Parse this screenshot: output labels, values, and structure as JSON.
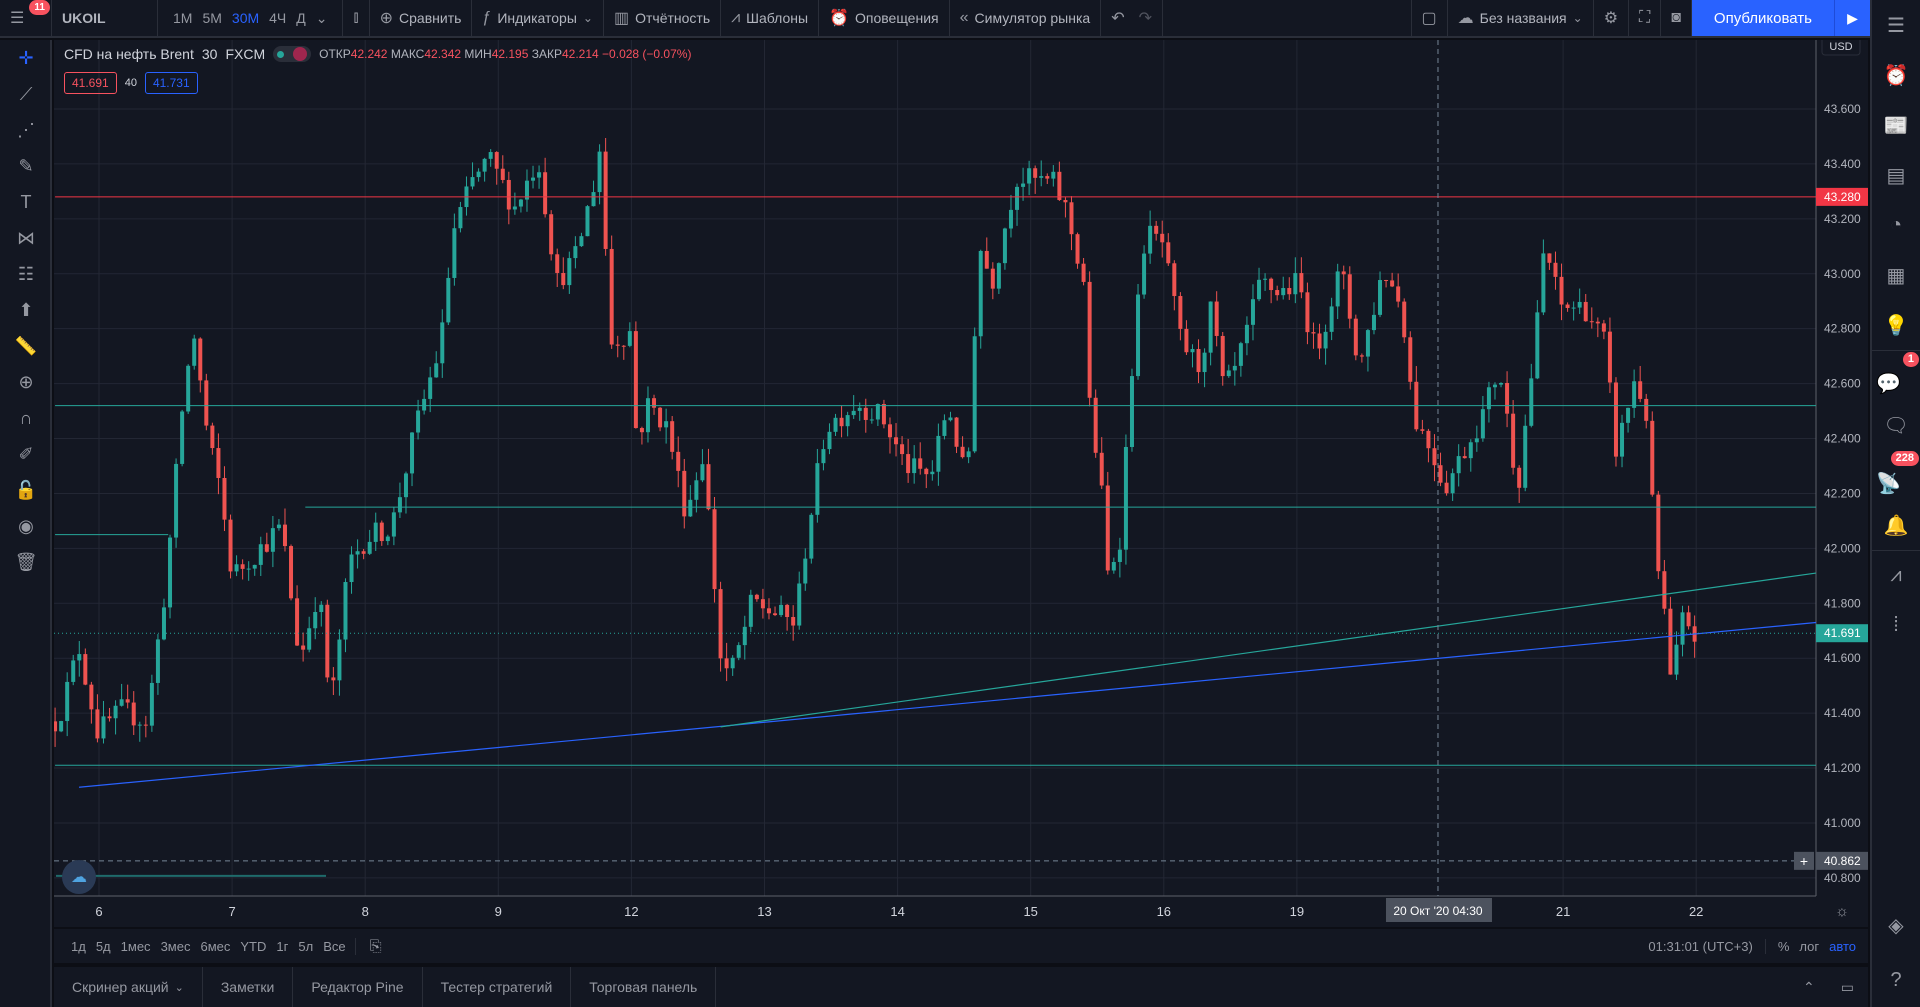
{
  "topbar": {
    "menu_badge": "11",
    "symbol": "UKOIL",
    "intervals": [
      "1М",
      "5М",
      "30М",
      "4Ч",
      "Д"
    ],
    "active_interval": "30М",
    "compare": "Сравнить",
    "indicators": "Индикаторы",
    "reports": "Отчётность",
    "templates": "Шаблоны",
    "alerts": "Оповещения",
    "replay": "Симулятор рынка",
    "layout_name": "Без названия",
    "publish": "Опубликовать"
  },
  "legend": {
    "title": "CFD на нефть Brent",
    "interval": "30",
    "exchange": "FXCM",
    "open_label": "ОТКР",
    "open": "42.242",
    "high_label": "МАКС",
    "high": "42.342",
    "low_label": "МИН",
    "low": "42.195",
    "close_label": "ЗАКР",
    "close": "42.214",
    "change": "−0.028 (−0.07%)",
    "bid": "41.691",
    "spread": "40",
    "ask": "41.731"
  },
  "price_axis": {
    "currency": "USD",
    "ticks": [
      "43.600",
      "43.400",
      "43.200",
      "43.000",
      "42.800",
      "42.600",
      "42.400",
      "42.200",
      "42.000",
      "41.800",
      "41.600",
      "41.400",
      "41.200",
      "41.000",
      "40.800"
    ],
    "labels": {
      "resistance": "43.280",
      "last": "41.691",
      "crosshair": "40.862"
    }
  },
  "time_axis": {
    "ticks": [
      "6",
      "7",
      "8",
      "9",
      "12",
      "13",
      "14",
      "15",
      "16",
      "19",
      "21",
      "22"
    ],
    "crosshair": "20 Окт '20   04:30"
  },
  "range_bar": {
    "ranges": [
      "1д",
      "5д",
      "1мес",
      "3мес",
      "6мес",
      "YTD",
      "1г",
      "5л",
      "Все"
    ],
    "clock": "01:31:01 (UTC+3)",
    "percent": "%",
    "log": "лог",
    "auto": "авто"
  },
  "bottom_panel": {
    "tabs": [
      "Скринер акций",
      "Заметки",
      "Редактор Pine",
      "Тестер стратегий",
      "Торговая панель"
    ]
  },
  "right_sidebar": {
    "ideas_badge": "1",
    "streams_badge": "228"
  },
  "colors": {
    "up": "#26a69a",
    "down": "#ef5350",
    "accent": "#2962ff",
    "background": "#131722"
  },
  "chart_data": {
    "type": "candlestick",
    "title": "CFD на нефть Brent, 30, FXCM",
    "x_unit": "trading day index (0 = Oct 6)",
    "ylim": [
      40.75,
      43.78
    ],
    "xlim": [
      -0.33,
      12.9
    ],
    "path": [
      [
        -0.31,
        41.37
      ],
      [
        -0.15,
        41.64
      ],
      [
        -0.01,
        41.33
      ],
      [
        0.17,
        41.41
      ],
      [
        0.36,
        41.37
      ],
      [
        0.5,
        41.86
      ],
      [
        0.63,
        42.53
      ],
      [
        0.71,
        42.79
      ],
      [
        0.82,
        42.39
      ],
      [
        0.91,
        42.22
      ],
      [
        1.0,
        41.9
      ],
      [
        1.19,
        41.99
      ],
      [
        1.37,
        42.08
      ],
      [
        1.51,
        41.59
      ],
      [
        1.65,
        41.86
      ],
      [
        1.74,
        41.41
      ],
      [
        1.88,
        41.95
      ],
      [
        2.01,
        42.04
      ],
      [
        2.2,
        42.08
      ],
      [
        2.38,
        42.44
      ],
      [
        2.57,
        42.75
      ],
      [
        2.66,
        43.15
      ],
      [
        2.8,
        43.33
      ],
      [
        2.93,
        43.42
      ],
      [
        3.12,
        43.24
      ],
      [
        3.3,
        43.42
      ],
      [
        3.44,
        42.97
      ],
      [
        3.58,
        43.06
      ],
      [
        3.72,
        43.33
      ],
      [
        3.76,
        43.46
      ],
      [
        3.85,
        42.75
      ],
      [
        3.99,
        42.79
      ],
      [
        4.04,
        42.39
      ],
      [
        4.13,
        42.53
      ],
      [
        4.27,
        42.44
      ],
      [
        4.41,
        42.13
      ],
      [
        4.54,
        42.35
      ],
      [
        4.68,
        41.55
      ],
      [
        4.77,
        41.57
      ],
      [
        4.91,
        41.81
      ],
      [
        5.05,
        41.77
      ],
      [
        5.23,
        41.73
      ],
      [
        5.33,
        42.08
      ],
      [
        5.46,
        42.44
      ],
      [
        5.69,
        42.53
      ],
      [
        5.88,
        42.48
      ],
      [
        6.06,
        42.3
      ],
      [
        6.25,
        42.26
      ],
      [
        6.38,
        42.53
      ],
      [
        6.52,
        42.22
      ],
      [
        6.61,
        43.11
      ],
      [
        6.71,
        42.97
      ],
      [
        6.89,
        43.35
      ],
      [
        7.17,
        43.33
      ],
      [
        7.26,
        43.24
      ],
      [
        7.4,
        42.97
      ],
      [
        7.44,
        42.53
      ],
      [
        7.53,
        42.22
      ],
      [
        7.58,
        41.9
      ],
      [
        7.67,
        42.04
      ],
      [
        7.76,
        42.66
      ],
      [
        7.86,
        43.15
      ],
      [
        7.99,
        43.11
      ],
      [
        8.13,
        42.75
      ],
      [
        8.27,
        42.66
      ],
      [
        8.36,
        42.88
      ],
      [
        8.45,
        42.57
      ],
      [
        8.55,
        42.66
      ],
      [
        8.73,
        42.97
      ],
      [
        8.87,
        42.93
      ],
      [
        9.01,
        42.97
      ],
      [
        9.14,
        42.71
      ],
      [
        9.33,
        43.02
      ],
      [
        9.47,
        42.66
      ],
      [
        9.65,
        43.02
      ],
      [
        9.79,
        42.88
      ],
      [
        9.88,
        42.48
      ],
      [
        10.02,
        42.35
      ],
      [
        10.11,
        42.22
      ],
      [
        10.25,
        42.35
      ],
      [
        10.39,
        42.48
      ],
      [
        10.52,
        42.66
      ],
      [
        10.66,
        42.22
      ],
      [
        10.8,
        42.79
      ],
      [
        10.86,
        43.11
      ],
      [
        10.98,
        42.88
      ],
      [
        11.16,
        42.88
      ],
      [
        11.31,
        42.75
      ],
      [
        11.4,
        42.35
      ],
      [
        11.54,
        42.62
      ],
      [
        11.63,
        42.48
      ],
      [
        11.69,
        41.99
      ],
      [
        11.75,
        41.81
      ],
      [
        11.81,
        41.5
      ],
      [
        11.91,
        41.77
      ],
      [
        11.98,
        41.68
      ]
    ],
    "horizontal_lines": [
      {
        "price": 43.28,
        "color": "#f23645",
        "from": -0.33
      },
      {
        "price": 42.52,
        "color": "#26a69a",
        "from": -0.33
      },
      {
        "price": 42.15,
        "color": "#26a69a",
        "from": 1.55
      },
      {
        "price": 41.21,
        "color": "#26a69a",
        "from": -0.33
      },
      {
        "price": 42.05,
        "color": "#26a69a",
        "from": -0.33,
        "to": 0.52
      }
    ],
    "trend_lines": [
      {
        "p1": [
          -0.15,
          41.13
        ],
        "p2": [
          12.9,
          41.73
        ],
        "color": "#2962ff"
      },
      {
        "p1": [
          4.67,
          41.35
        ],
        "p2": [
          12.9,
          41.91
        ],
        "color": "#26a69a"
      }
    ],
    "last_price": 41.691,
    "crosshair": {
      "t": 10.06,
      "price": 40.862
    }
  }
}
